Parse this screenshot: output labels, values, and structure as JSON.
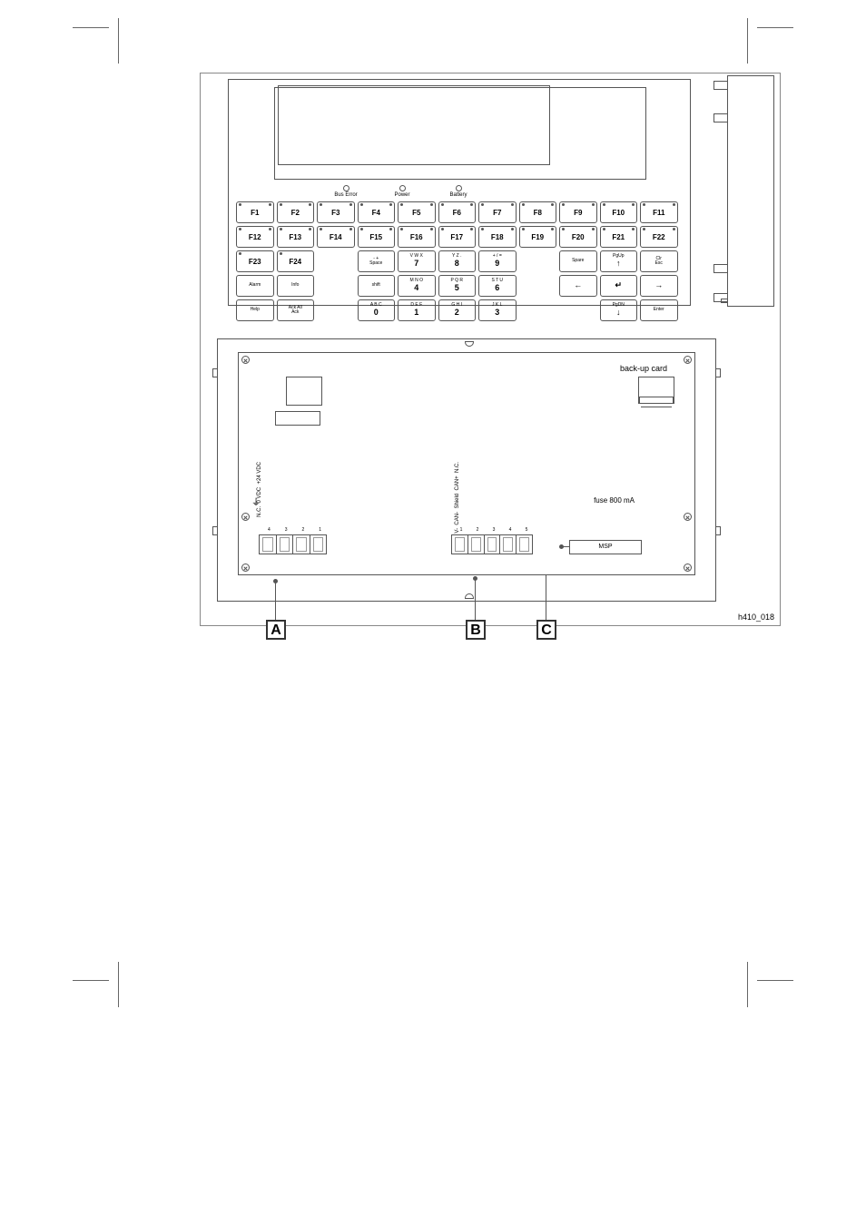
{
  "leds": [
    "Bus Error",
    "Power",
    "Battery"
  ],
  "frow1": [
    "F1",
    "F2",
    "F3",
    "F4",
    "F5",
    "F6",
    "F7",
    "F8",
    "F9",
    "F10",
    "F11"
  ],
  "frow2": [
    "F12",
    "F13",
    "F14",
    "F15",
    "F16",
    "F17",
    "F18",
    "F19",
    "F20",
    "F21",
    "F22"
  ],
  "rowA": {
    "f23": "F23",
    "f24": "F24",
    "k1": {
      "sub": "- +",
      "main": "Space"
    },
    "k2": {
      "sub": "V W X",
      "main": "7"
    },
    "k3": {
      "sub": "Y Z .",
      "main": "8"
    },
    "k4": {
      "sub": "+ / =",
      "main": "9"
    },
    "spare": "Spare",
    "pgup": {
      "sub": "PgUp",
      "main": "↑"
    },
    "esc": {
      "sub": "Clr",
      "main": "Esc"
    }
  },
  "rowB": {
    "alarm": "Alarm",
    "info": "Info",
    "shift": "shift",
    "k1": {
      "sub": "M N O",
      "main": "4"
    },
    "k2": {
      "sub": "P Q R",
      "main": "5"
    },
    "k3": {
      "sub": "S T U",
      "main": "6"
    },
    "left": "←",
    "ok": "↵",
    "right": "→"
  },
  "rowC": {
    "help": "Help",
    "ack": {
      "sub": "Ack All",
      "main": "Ack"
    },
    "k0": {
      "sub": "A B C",
      "main": "0"
    },
    "k1": {
      "sub": "D E F",
      "main": "1"
    },
    "k2": {
      "sub": "G H I",
      "main": "2"
    },
    "k3": {
      "sub": "J K L",
      "main": "3"
    },
    "pgdn": {
      "sub": "PgDN",
      "main": "↓"
    },
    "enter": "Enter"
  },
  "backup": "back-up card",
  "terminalA": {
    "earth": "⏚",
    "labels": [
      "N.C.",
      "0 VDC",
      "+24 VDC"
    ],
    "nums": [
      "4",
      "3",
      "2",
      "1"
    ]
  },
  "terminalB": {
    "labels": [
      "V-",
      "CAN-",
      "Shield",
      "CAN+",
      "N.C."
    ],
    "nums": [
      "1",
      "2",
      "3",
      "4",
      "5"
    ]
  },
  "fuse": "fuse 800 mA",
  "msp": "MSP",
  "callouts": {
    "a": "A",
    "b": "B",
    "c": "C"
  },
  "figref": "h410_018"
}
